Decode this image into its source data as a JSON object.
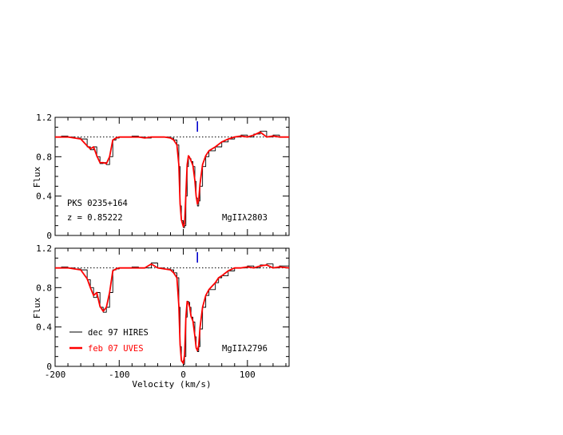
{
  "chart_data": [
    {
      "type": "line",
      "panel": "top",
      "xlim": [
        -200,
        165
      ],
      "ylim": [
        0,
        1.2
      ],
      "yticks": [
        0,
        0.4,
        0.8,
        1.2
      ],
      "ylabel": "Flux",
      "continuum": 1.0,
      "marker_velocity": 22,
      "annotations": [
        "PKS 0235+164",
        "z = 0.85222"
      ],
      "line_label": "MgIIλ2803",
      "series": [
        {
          "name": "dec 97 HIRES",
          "color": "#000000",
          "step": true,
          "x": [
            -200,
            -190,
            -180,
            -170,
            -160,
            -150,
            -145,
            -140,
            -135,
            -130,
            -125,
            -120,
            -115,
            -110,
            -105,
            -100,
            -90,
            -80,
            -70,
            -60,
            -50,
            -40,
            -30,
            -20,
            -15,
            -10,
            -7,
            -5,
            -3,
            0,
            2,
            4,
            6,
            8,
            10,
            12,
            15,
            18,
            20,
            22,
            24,
            26,
            30,
            35,
            40,
            50,
            60,
            70,
            80,
            90,
            100,
            110,
            120,
            130,
            140,
            150,
            165
          ],
          "y": [
            1.0,
            1.01,
            1.0,
            0.99,
            0.98,
            0.9,
            0.87,
            0.9,
            0.8,
            0.73,
            0.74,
            0.72,
            0.8,
            0.97,
            0.99,
            1.0,
            1.0,
            1.01,
            1.0,
            0.99,
            1.0,
            1.0,
            1.0,
            0.99,
            0.97,
            0.92,
            0.7,
            0.3,
            0.15,
            0.08,
            0.1,
            0.4,
            0.7,
            0.8,
            0.78,
            0.75,
            0.7,
            0.55,
            0.38,
            0.3,
            0.35,
            0.5,
            0.7,
            0.8,
            0.86,
            0.9,
            0.95,
            0.98,
            1.0,
            1.02,
            1.0,
            1.03,
            1.06,
            1.0,
            1.02,
            1.0,
            1.0
          ]
        },
        {
          "name": "feb 07 UVES",
          "color": "#ff0000",
          "step": false,
          "x": [
            -200,
            -190,
            -180,
            -170,
            -160,
            -150,
            -145,
            -140,
            -135,
            -130,
            -125,
            -120,
            -115,
            -110,
            -105,
            -100,
            -90,
            -80,
            -70,
            -60,
            -50,
            -40,
            -30,
            -20,
            -15,
            -10,
            -7,
            -5,
            -3,
            0,
            2,
            4,
            6,
            8,
            10,
            12,
            15,
            18,
            20,
            22,
            24,
            26,
            30,
            35,
            40,
            50,
            60,
            70,
            80,
            90,
            100,
            110,
            120,
            130,
            140,
            150,
            165
          ],
          "y": [
            1.0,
            1.0,
            1.0,
            0.99,
            0.98,
            0.91,
            0.88,
            0.9,
            0.81,
            0.74,
            0.74,
            0.73,
            0.8,
            0.97,
            0.99,
            1.0,
            1.0,
            1.0,
            1.0,
            0.99,
            1.0,
            1.0,
            1.0,
            0.99,
            0.97,
            0.92,
            0.72,
            0.32,
            0.16,
            0.09,
            0.12,
            0.42,
            0.72,
            0.81,
            0.79,
            0.76,
            0.71,
            0.56,
            0.4,
            0.32,
            0.36,
            0.52,
            0.72,
            0.81,
            0.86,
            0.9,
            0.95,
            0.98,
            1.0,
            1.01,
            1.0,
            1.02,
            1.05,
            1.0,
            1.01,
            1.0,
            1.0
          ]
        }
      ]
    },
    {
      "type": "line",
      "panel": "bottom",
      "xlim": [
        -200,
        165
      ],
      "ylim": [
        0,
        1.2
      ],
      "xticks": [
        -200,
        -100,
        0,
        100
      ],
      "yticks": [
        0,
        0.4,
        0.8,
        1.2
      ],
      "xlabel": "Velocity (km/s)",
      "ylabel": "Flux",
      "continuum": 1.0,
      "marker_velocity": 22,
      "line_label": "MgIIλ2796",
      "legend": [
        {
          "label": "dec 97 HIRES",
          "color": "#000000"
        },
        {
          "label": "feb 07 UVES",
          "color": "#ff0000"
        }
      ],
      "series": [
        {
          "name": "dec 97 HIRES",
          "color": "#000000",
          "step": true,
          "x": [
            -200,
            -190,
            -180,
            -170,
            -160,
            -150,
            -145,
            -140,
            -135,
            -130,
            -125,
            -120,
            -115,
            -110,
            -105,
            -100,
            -90,
            -80,
            -70,
            -60,
            -50,
            -40,
            -30,
            -20,
            -15,
            -10,
            -7,
            -5,
            -3,
            0,
            2,
            4,
            6,
            8,
            10,
            12,
            15,
            18,
            20,
            22,
            24,
            26,
            30,
            35,
            40,
            50,
            55,
            60,
            70,
            80,
            90,
            100,
            110,
            120,
            130,
            140,
            150,
            165
          ],
          "y": [
            1.0,
            1.01,
            1.0,
            0.99,
            0.98,
            0.88,
            0.8,
            0.7,
            0.75,
            0.6,
            0.55,
            0.6,
            0.75,
            0.98,
            0.99,
            1.0,
            1.0,
            1.01,
            1.0,
            1.0,
            1.05,
            1.0,
            0.99,
            0.98,
            0.95,
            0.9,
            0.6,
            0.2,
            0.05,
            0.02,
            0.1,
            0.5,
            0.66,
            0.65,
            0.6,
            0.5,
            0.45,
            0.3,
            0.18,
            0.15,
            0.2,
            0.38,
            0.6,
            0.72,
            0.78,
            0.85,
            0.9,
            0.92,
            0.97,
            1.0,
            1.0,
            1.02,
            1.0,
            1.03,
            1.04,
            1.0,
            1.02,
            1.0
          ]
        },
        {
          "name": "feb 07 UVES",
          "color": "#ff0000",
          "step": false,
          "x": [
            -200,
            -190,
            -180,
            -170,
            -160,
            -150,
            -145,
            -140,
            -135,
            -130,
            -125,
            -120,
            -115,
            -110,
            -105,
            -100,
            -90,
            -80,
            -70,
            -60,
            -50,
            -40,
            -30,
            -20,
            -15,
            -10,
            -7,
            -5,
            -3,
            0,
            2,
            4,
            6,
            8,
            10,
            12,
            15,
            18,
            20,
            22,
            24,
            26,
            30,
            35,
            40,
            50,
            55,
            60,
            70,
            80,
            90,
            100,
            110,
            120,
            130,
            140,
            150,
            165
          ],
          "y": [
            1.0,
            1.0,
            1.0,
            0.99,
            0.98,
            0.89,
            0.8,
            0.72,
            0.75,
            0.61,
            0.56,
            0.6,
            0.75,
            0.97,
            0.99,
            1.0,
            1.0,
            1.0,
            1.0,
            1.0,
            1.04,
            1.0,
            0.99,
            0.98,
            0.95,
            0.9,
            0.62,
            0.22,
            0.06,
            0.03,
            0.12,
            0.5,
            0.66,
            0.64,
            0.6,
            0.51,
            0.46,
            0.31,
            0.19,
            0.16,
            0.21,
            0.39,
            0.6,
            0.72,
            0.78,
            0.85,
            0.9,
            0.92,
            0.97,
            1.0,
            1.0,
            1.01,
            1.0,
            1.02,
            1.03,
            1.0,
            1.01,
            1.0
          ]
        }
      ]
    }
  ]
}
